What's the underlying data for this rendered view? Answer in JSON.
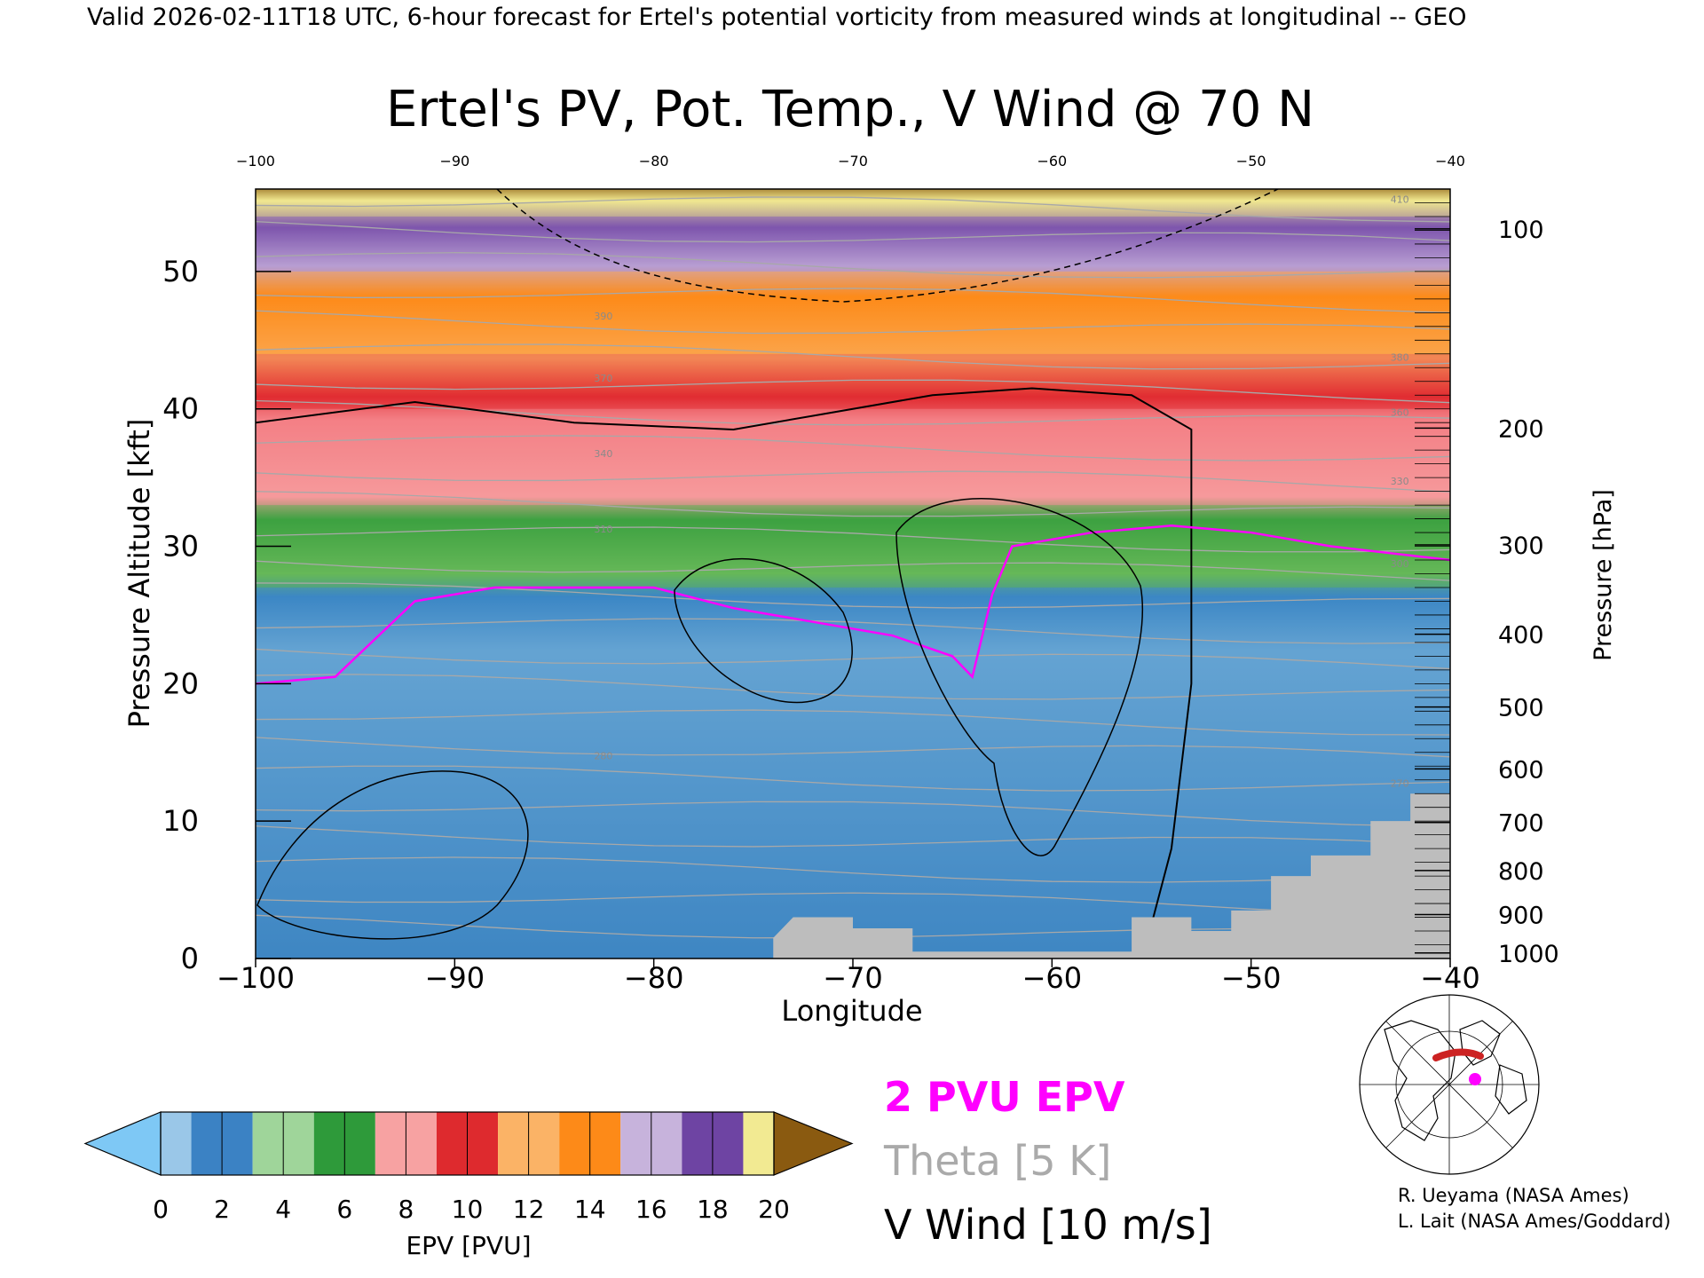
{
  "header": {
    "valid_line": "Valid 2026-02-11T18 UTC, 6-hour forecast for Ertel's potential vorticity from measured winds at longitudinal -- GEO"
  },
  "chart_data": {
    "type": "heatmap",
    "title": "Ertel's PV, Pot. Temp., V Wind @ 70 N",
    "xlabel": "Longitude",
    "ylabel_left": "Pressure Altitude [kft]",
    "ylabel_right": "Pressure [hPa]",
    "xlim": [
      -100,
      -40
    ],
    "ylim_kft": [
      0,
      56
    ],
    "x_ticks": [
      "−100",
      "−90",
      "−80",
      "−70",
      "−60",
      "−50",
      "−40"
    ],
    "x_ticks_top": [
      "−100",
      "−90",
      "−80",
      "−70",
      "−60",
      "−50",
      "−40"
    ],
    "x_tick_values": [
      -100,
      -90,
      -80,
      -70,
      -60,
      -50,
      -40
    ],
    "y_ticks_left": [
      "0",
      "10",
      "20",
      "30",
      "40",
      "50"
    ],
    "y_tick_values_left": [
      0,
      10,
      20,
      30,
      40,
      50
    ],
    "y_ticks_right": [
      {
        "label": "100",
        "kft": 53.1
      },
      {
        "label": "200",
        "kft": 38.6
      },
      {
        "label": "300",
        "kft": 30.1
      },
      {
        "label": "400",
        "kft": 23.6
      },
      {
        "label": "500",
        "kft": 18.3
      },
      {
        "label": "600",
        "kft": 13.8
      },
      {
        "label": "700",
        "kft": 9.9
      },
      {
        "label": "800",
        "kft": 6.4
      },
      {
        "label": "900",
        "kft": 3.2
      },
      {
        "label": "1000",
        "kft": 0.4
      }
    ],
    "colorbar": {
      "label": "EPV [PVU]",
      "ticks": [
        "0",
        "2",
        "4",
        "6",
        "8",
        "10",
        "12",
        "14",
        "16",
        "18",
        "20"
      ],
      "colors": [
        "#9ac7e8",
        "#3b82c4",
        "#9fd59a",
        "#2e9a3a",
        "#f7a2a2",
        "#de2a2e",
        "#fbb366",
        "#fd8a18",
        "#c7b3dc",
        "#6e44a3",
        "#f2ea92",
        "#8a5a10"
      ],
      "under_color": "#7ec8f5",
      "over_color": "#8a5a10"
    },
    "bands_kft": [
      {
        "pvu": 1.5,
        "color": "#3e86c3",
        "bottom": 0,
        "top": 27
      },
      {
        "pvu": 4,
        "color": "#5ab04e",
        "bottom": 27,
        "top": 33
      },
      {
        "pvu": 7,
        "color": "#f48a8f",
        "bottom": 33,
        "top": 40
      },
      {
        "pvu": 10,
        "color": "#e33036",
        "bottom": 40,
        "top": 44
      },
      {
        "pvu": 12.5,
        "color": "#fd8c1c",
        "bottom": 44,
        "top": 50
      },
      {
        "pvu": 15,
        "color": "#9a76c0",
        "bottom": 50,
        "top": 54
      },
      {
        "pvu": 19,
        "color": "#efe58c",
        "bottom": 54,
        "top": 56
      }
    ],
    "two_pvu_boundary": [
      {
        "lon": -100,
        "kft": 20.0
      },
      {
        "lon": -96,
        "kft": 20.5
      },
      {
        "lon": -92,
        "kft": 26.0
      },
      {
        "lon": -88,
        "kft": 27.0
      },
      {
        "lon": -80,
        "kft": 27.0
      },
      {
        "lon": -76,
        "kft": 25.5
      },
      {
        "lon": -72,
        "kft": 24.5
      },
      {
        "lon": -68,
        "kft": 23.5
      },
      {
        "lon": -65,
        "kft": 22.0
      },
      {
        "lon": -64,
        "kft": 20.5
      },
      {
        "lon": -63,
        "kft": 26.5
      },
      {
        "lon": -62,
        "kft": 30.0
      },
      {
        "lon": -58,
        "kft": 31.0
      },
      {
        "lon": -54,
        "kft": 31.5
      },
      {
        "lon": -50,
        "kft": 31.0
      },
      {
        "lon": -46,
        "kft": 30.0
      },
      {
        "lon": -40,
        "kft": 29.0
      }
    ],
    "vwind_zero_line": [
      {
        "lon": -100,
        "kft": 39.0
      },
      {
        "lon": -92,
        "kft": 40.5
      },
      {
        "lon": -84,
        "kft": 39.0
      },
      {
        "lon": -76,
        "kft": 38.5
      },
      {
        "lon": -72,
        "kft": 39.5
      },
      {
        "lon": -66,
        "kft": 41.0
      },
      {
        "lon": -61,
        "kft": 41.5
      },
      {
        "lon": -56,
        "kft": 41.0
      },
      {
        "lon": -53,
        "kft": 38.5
      },
      {
        "lon": -53,
        "kft": 20.0
      },
      {
        "lon": -54,
        "kft": 8.0
      },
      {
        "lon": -55,
        "kft": 2.5
      }
    ],
    "ground_kft": [
      {
        "lon": -100,
        "kft": 0
      },
      {
        "lon": -74,
        "kft": 0
      },
      {
        "lon": -74,
        "kft": 1.5
      },
      {
        "lon": -73,
        "kft": 3.0
      },
      {
        "lon": -70,
        "kft": 3.0
      },
      {
        "lon": -70,
        "kft": 2.2
      },
      {
        "lon": -67,
        "kft": 2.2
      },
      {
        "lon": -67,
        "kft": 0.5
      },
      {
        "lon": -56,
        "kft": 0.5
      },
      {
        "lon": -56,
        "kft": 3.0
      },
      {
        "lon": -53,
        "kft": 3.0
      },
      {
        "lon": -53,
        "kft": 2.0
      },
      {
        "lon": -51,
        "kft": 2.0
      },
      {
        "lon": -51,
        "kft": 3.5
      },
      {
        "lon": -49,
        "kft": 3.5
      },
      {
        "lon": -49,
        "kft": 6.0
      },
      {
        "lon": -47,
        "kft": 6.0
      },
      {
        "lon": -47,
        "kft": 7.5
      },
      {
        "lon": -44,
        "kft": 7.5
      },
      {
        "lon": -44,
        "kft": 10.0
      },
      {
        "lon": -42,
        "kft": 10.0
      },
      {
        "lon": -42,
        "kft": 12.0
      },
      {
        "lon": -40,
        "kft": 12.0
      },
      {
        "lon": -40,
        "kft": 0
      }
    ],
    "theta_line_labels": [
      "270",
      "280",
      "300",
      "310",
      "330",
      "340",
      "360",
      "370",
      "380",
      "390",
      "410"
    ]
  },
  "legend": {
    "epv_label": "2 PVU EPV",
    "epv_color": "#ff00ff",
    "theta_label": "Theta [5 K]",
    "theta_color": "#aaaaaa",
    "wind_label": "V Wind [10 m/s]",
    "wind_color": "#000000"
  },
  "credits": {
    "line1": "R. Ueyama (NASA Ames)",
    "line2": "L. Lait (NASA Ames/Goddard)"
  },
  "locator_map": {
    "track_color": "#cc2222",
    "marker_color": "#ff00ff"
  }
}
